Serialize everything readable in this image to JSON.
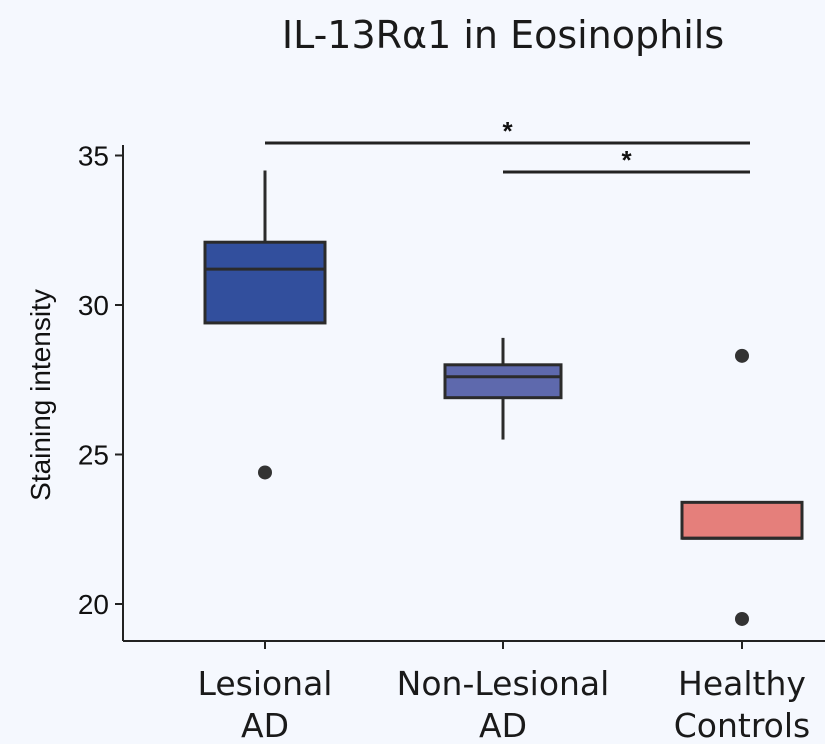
{
  "chart_data": {
    "type": "box",
    "title": "IL-13Rα1 in Eosinophils",
    "xlabel": "",
    "ylabel": "Staining intensity",
    "ylim": [
      19.2,
      36.5
    ],
    "yticks": [
      20,
      25,
      30,
      35
    ],
    "grid": false,
    "legend": "none",
    "categories": [
      [
        "Lesional",
        "AD"
      ],
      [
        "Non-Lesional",
        "AD"
      ],
      [
        "Healthy",
        "Controls"
      ]
    ],
    "groups": [
      {
        "category": "Lesional AD",
        "color": "#324f9d",
        "whisker_low": 29.4,
        "q1": 29.4,
        "median": 31.2,
        "q3": 32.1,
        "whisker_high": 34.5,
        "outliers": [
          24.4
        ]
      },
      {
        "category": "Non-Lesional AD",
        "color": "#5e69ad",
        "whisker_low": 25.5,
        "q1": 26.9,
        "median": 27.6,
        "q3": 28.0,
        "whisker_high": 28.9,
        "outliers": []
      },
      {
        "category": "Healthy Controls",
        "color": "#e57f7b",
        "whisker_low": 22.2,
        "q1": 22.2,
        "median": 22.2,
        "q3": 23.4,
        "whisker_high": 23.4,
        "outliers": [
          28.3,
          19.5
        ]
      }
    ],
    "significance": [
      {
        "from": 0,
        "to": 2,
        "label": "*"
      },
      {
        "from": 1,
        "to": 2,
        "label": "*"
      }
    ]
  }
}
